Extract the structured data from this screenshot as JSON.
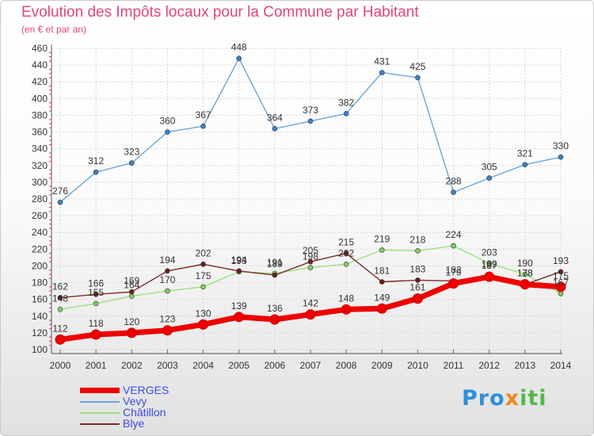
{
  "title": "Evolution des Impôts locaux pour la Commune par Habitant",
  "subtitle": "(en € et par an)",
  "logo": {
    "part1": "Pro",
    "part2": "x",
    "part3": "iti"
  },
  "chart_data": {
    "type": "line",
    "x": [
      "2000",
      "2001",
      "2002",
      "2003",
      "2004",
      "2005",
      "2006",
      "2007",
      "2008",
      "2009",
      "2010",
      "2011",
      "2012",
      "2013",
      "2014"
    ],
    "ylim": [
      100,
      460
    ],
    "yticks": [
      100,
      120,
      140,
      160,
      180,
      200,
      220,
      240,
      260,
      280,
      300,
      320,
      340,
      360,
      380,
      400,
      420,
      440,
      460
    ],
    "grid": true,
    "legend_position": "bottom-left",
    "series": [
      {
        "name": "Vevy",
        "color": "#6aa6d8",
        "point_color": "#3c83c8",
        "values": [
          276,
          312,
          323,
          360,
          367,
          448,
          364,
          373,
          382,
          431,
          425,
          288,
          305,
          321,
          330
        ]
      },
      {
        "name": "Châtillon",
        "color": "#9ee07f",
        "point_color": "#7fd05f",
        "values": [
          148,
          155,
          164,
          170,
          175,
          193,
          191,
          198,
          202,
          219,
          218,
          224,
          203,
          190,
          167
        ],
        "labels": [
          "148",
          "155",
          "164",
          "170",
          "175",
          "193",
          "191",
          "198",
          "202",
          "219",
          "218",
          "224",
          "203",
          "190",
          "167"
        ]
      },
      {
        "name": "Blye",
        "color": "#7a2a2a",
        "point_color": "#6a1f1f",
        "values": [
          162,
          166,
          169,
          194,
          202,
          194,
          189,
          205,
          215,
          181,
          183,
          182,
          189,
          178,
          193
        ],
        "labels": [
          "162",
          "166",
          "169",
          "194",
          "202",
          "194",
          "189",
          "205",
          "215",
          "181",
          "183",
          "182",
          "189",
          "178",
          "193"
        ]
      },
      {
        "name": "VERGES",
        "color": "#ee0000",
        "point_color": "#ee0000",
        "values": [
          112,
          118,
          120,
          123,
          130,
          139,
          136,
          142,
          148,
          149,
          161,
          179,
          187,
          178,
          175
        ]
      }
    ]
  }
}
